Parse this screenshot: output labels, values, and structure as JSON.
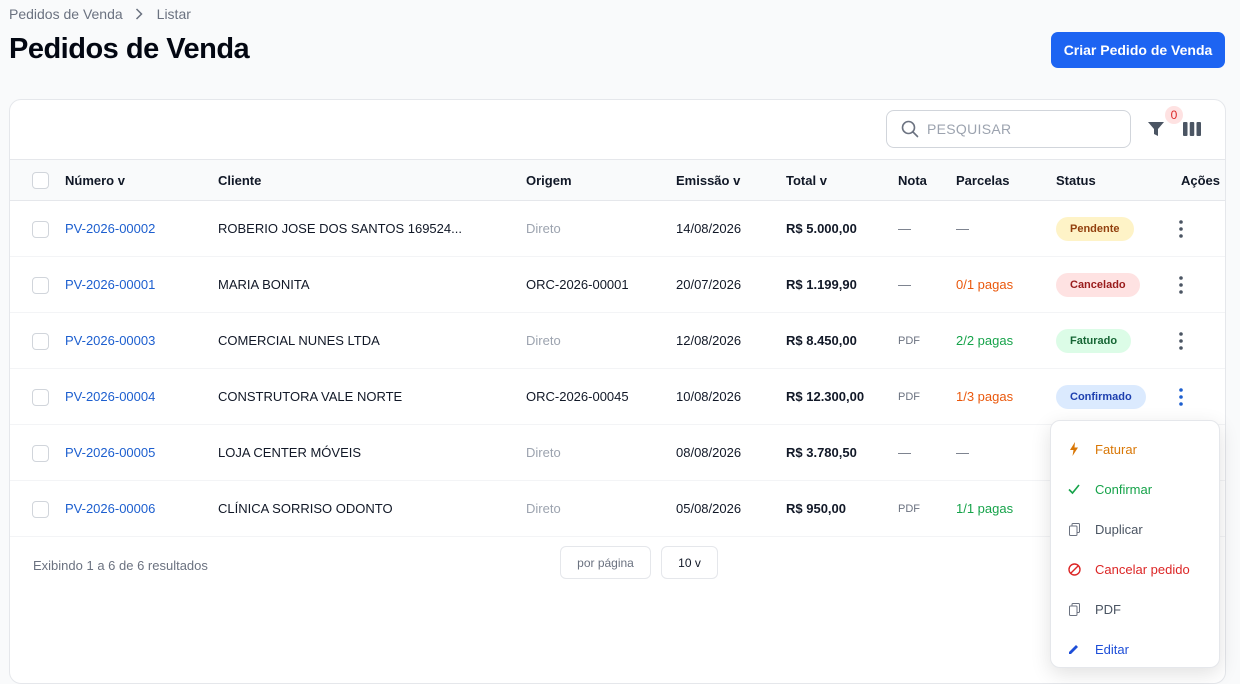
{
  "breadcrumb": {
    "root": "Pedidos de Venda",
    "current": "Listar"
  },
  "page_title": "Pedidos de Venda",
  "create_button": "Criar Pedido de Venda",
  "toolbar": {
    "search_placeholder": "PESQUISAR",
    "filter_count": "0"
  },
  "columns": {
    "numero": "Número v",
    "cliente": "Cliente",
    "origem": "Origem",
    "emissao": "Emissão v",
    "total": "Total v",
    "nota": "Nota",
    "parcelas": "Parcelas",
    "status": "Status",
    "acoes": "Ações"
  },
  "rows": [
    {
      "numero": "PV-2026-00002",
      "cliente": "ROBERIO JOSE DOS SANTOS 169524...",
      "origem": "Direto",
      "emissao": "14/08/2026",
      "total": "R$ 5.000,00",
      "nota": "—",
      "parcelas": "—",
      "status": "Pendente"
    },
    {
      "numero": "PV-2026-00001",
      "cliente": "MARIA BONITA",
      "origem": "ORC-2026-00001",
      "emissao": "20/07/2026",
      "total": "R$ 1.199,90",
      "nota": "—",
      "parcelas": "0/1 pagas",
      "status": "Cancelado"
    },
    {
      "numero": "PV-2026-00003",
      "cliente": "COMERCIAL NUNES LTDA",
      "origem": "Direto",
      "emissao": "12/08/2026",
      "total": "R$ 8.450,00",
      "nota": "PDF",
      "parcelas": "2/2 pagas",
      "status": "Faturado"
    },
    {
      "numero": "PV-2026-00004",
      "cliente": "CONSTRUTORA VALE NORTE",
      "origem": "ORC-2026-00045",
      "emissao": "10/08/2026",
      "total": "R$ 12.300,00",
      "nota": "PDF",
      "parcelas": "1/3 pagas",
      "status": "Confirmado"
    },
    {
      "numero": "PV-2026-00005",
      "cliente": "LOJA CENTER MÓVEIS",
      "origem": "Direto",
      "emissao": "08/08/2026",
      "total": "R$ 3.780,50",
      "nota": "—",
      "parcelas": "—"
    },
    {
      "numero": "PV-2026-00006",
      "cliente": "CLÍNICA SORRISO ODONTO",
      "origem": "Direto",
      "emissao": "05/08/2026",
      "total": "R$ 950,00",
      "nota": "PDF",
      "parcelas": "1/1 pagas"
    }
  ],
  "footer": {
    "results": "Exibindo 1 a 6 de 6 resultados",
    "per_page_label": "por página",
    "per_page_value": "10 v"
  },
  "action_menu": [
    {
      "label": "Faturar",
      "icon": "lightning-icon",
      "color": "#d97706"
    },
    {
      "label": "Confirmar",
      "icon": "check-icon",
      "color": "#16a34a"
    },
    {
      "label": "Duplicar",
      "icon": "copy-icon",
      "color": "#4b5563"
    },
    {
      "label": "Cancelar pedido",
      "icon": "cancel-icon",
      "color": "#dc2626"
    },
    {
      "label": "PDF",
      "icon": "document-icon",
      "color": "#4b5563"
    },
    {
      "label": "Editar",
      "icon": "pencil-icon",
      "color": "#1d4ed8"
    }
  ],
  "colors": {
    "primary": "#1d64f2",
    "link": "#1d5fcf",
    "pendente": {
      "bg": "#fef3c7",
      "fg": "#92400e"
    },
    "cancelado": {
      "bg": "#fee2e2",
      "fg": "#991b1b"
    },
    "faturado": {
      "bg": "#dcfce7",
      "fg": "#166534"
    },
    "confirmado": {
      "bg": "#dbeafe",
      "fg": "#1e40af"
    }
  }
}
